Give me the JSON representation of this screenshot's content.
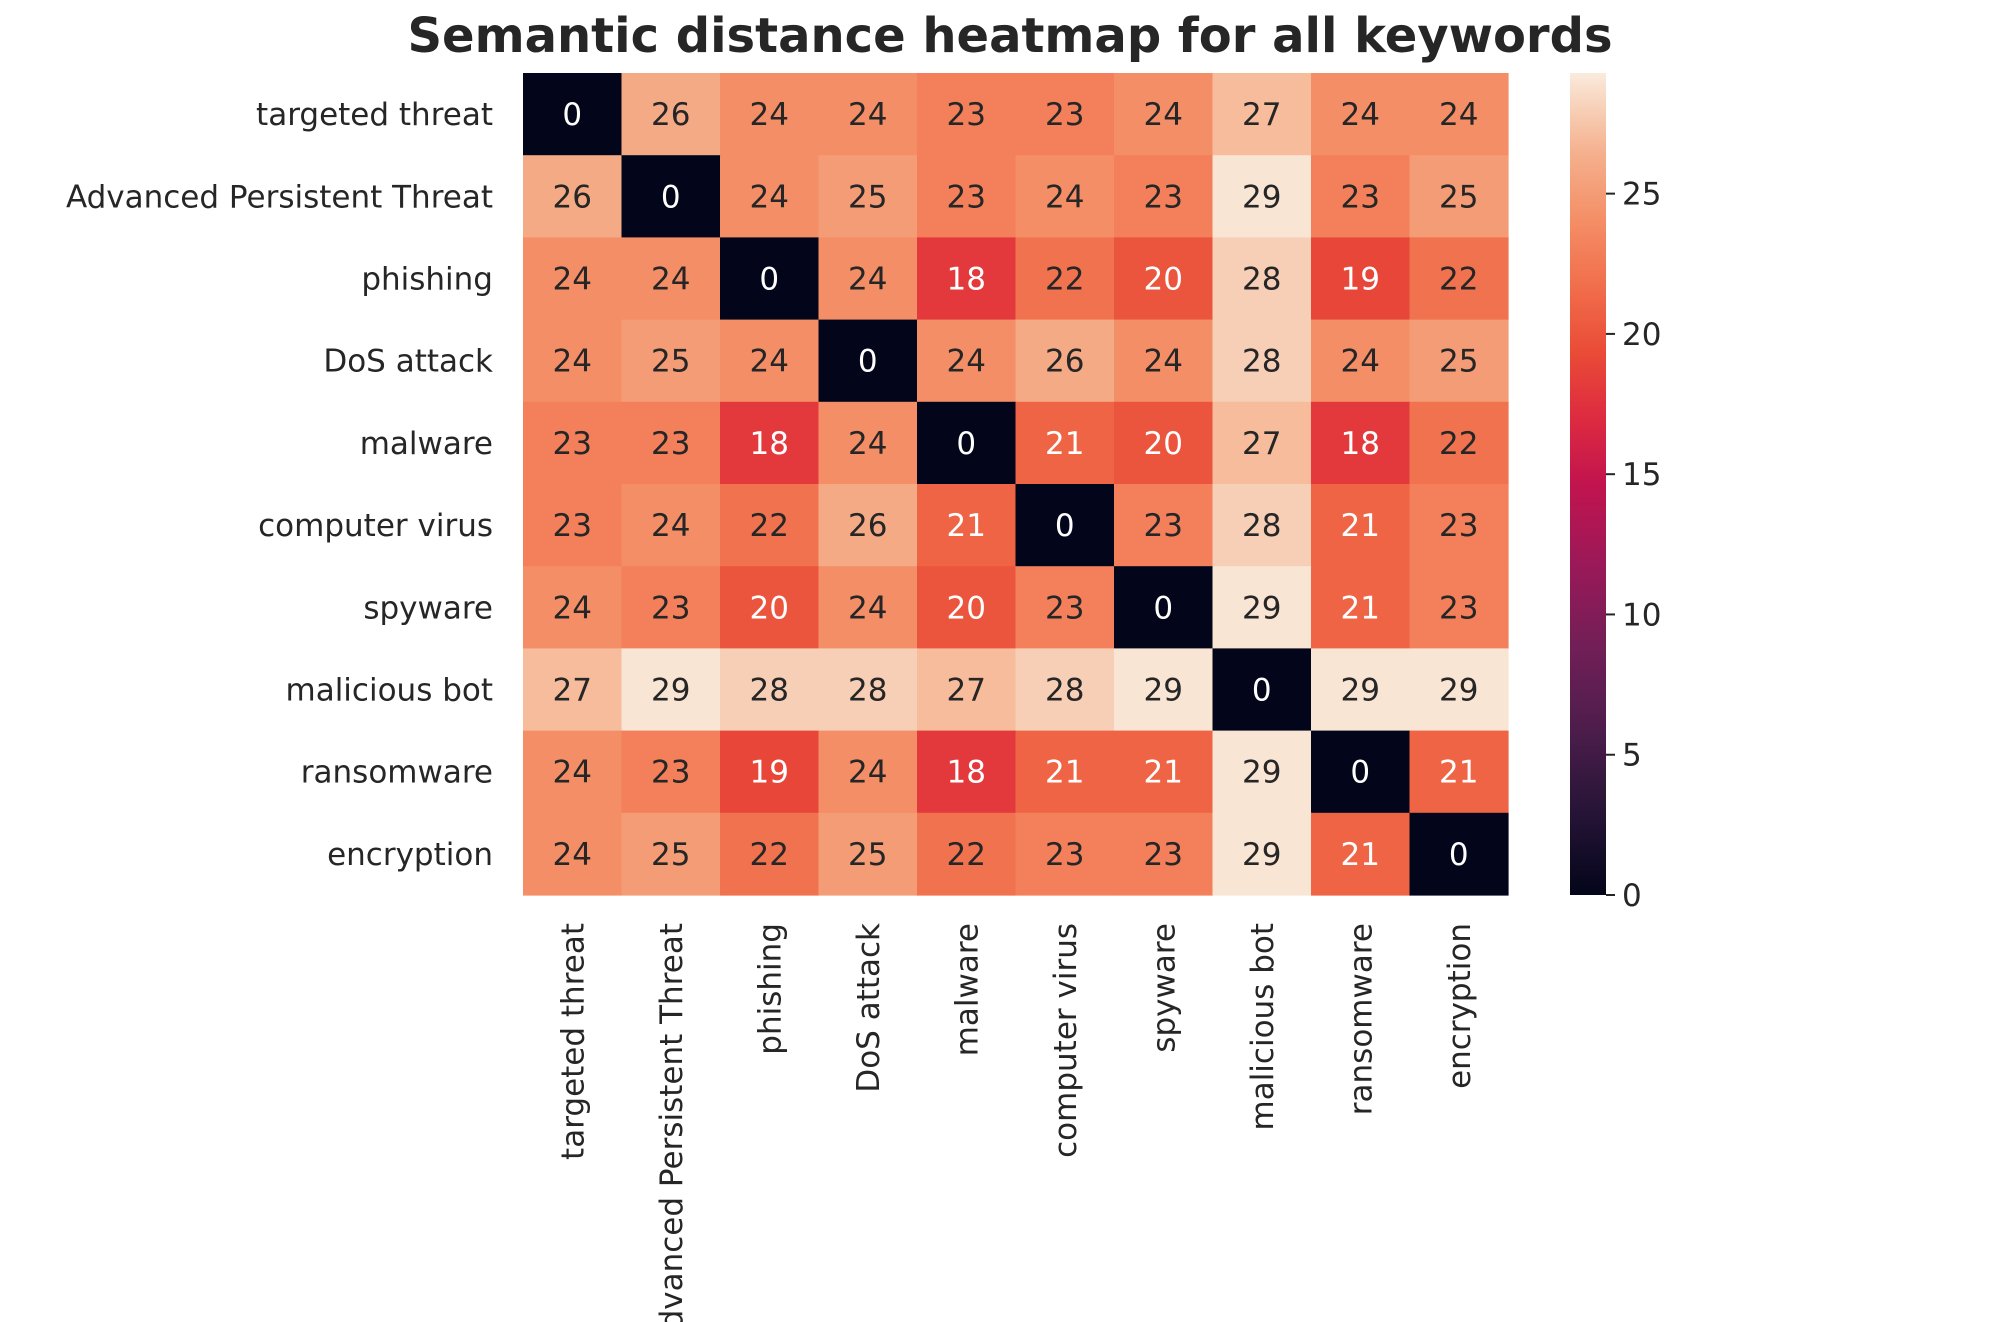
{
  "chart_data": {
    "type": "heatmap",
    "title": "Semantic distance heatmap for all keywords",
    "xlabel": "",
    "ylabel": "",
    "x_categories": [
      "targeted threat",
      "Advanced Persistent Threat",
      "phishing",
      "DoS attack",
      "malware",
      "computer virus",
      "spyware",
      "malicious bot",
      "ransomware",
      "encryption"
    ],
    "y_categories": [
      "targeted threat",
      "Advanced Persistent Threat",
      "phishing",
      "DoS attack",
      "malware",
      "computer virus",
      "spyware",
      "malicious bot",
      "ransomware",
      "encryption"
    ],
    "values": [
      [
        0,
        26,
        24,
        24,
        23,
        23,
        24,
        27,
        24,
        24
      ],
      [
        26,
        0,
        24,
        25,
        23,
        24,
        23,
        29,
        23,
        25
      ],
      [
        24,
        24,
        0,
        24,
        18,
        22,
        20,
        28,
        19,
        22
      ],
      [
        24,
        25,
        24,
        0,
        24,
        26,
        24,
        28,
        24,
        25
      ],
      [
        23,
        23,
        18,
        24,
        0,
        21,
        20,
        27,
        18,
        22
      ],
      [
        23,
        24,
        22,
        26,
        21,
        0,
        23,
        28,
        21,
        23
      ],
      [
        24,
        23,
        20,
        24,
        20,
        23,
        0,
        29,
        21,
        23
      ],
      [
        27,
        29,
        28,
        28,
        27,
        28,
        29,
        0,
        29,
        29
      ],
      [
        24,
        23,
        19,
        24,
        18,
        21,
        21,
        29,
        0,
        21
      ],
      [
        24,
        25,
        22,
        25,
        22,
        23,
        23,
        29,
        21,
        0
      ]
    ],
    "colormap": "rocket",
    "colorbar": {
      "min": 0,
      "max": 29.3,
      "ticks": [
        0,
        5,
        10,
        15,
        20,
        25
      ]
    },
    "annotations": true,
    "grid": false,
    "legend": "colorbar-right"
  }
}
